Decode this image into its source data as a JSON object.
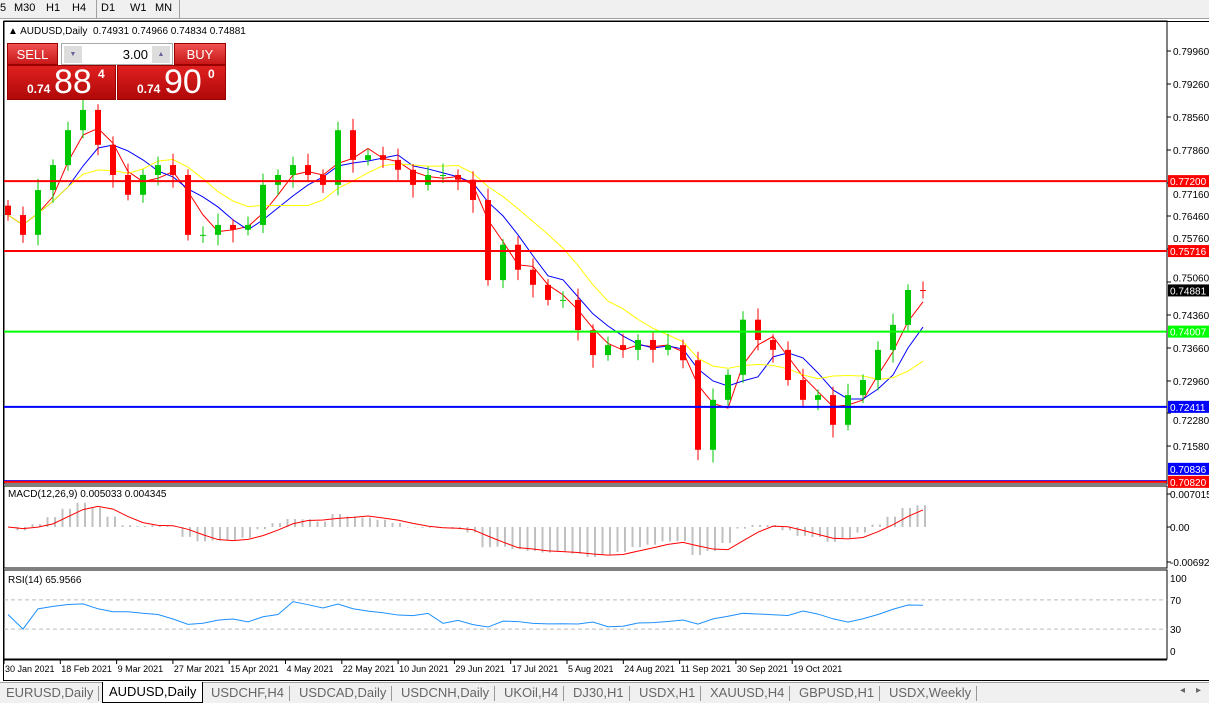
{
  "timeframes": [
    "5",
    "M30",
    "H1",
    "H4",
    "D1",
    "W1",
    "MN"
  ],
  "active_timeframe": "D1",
  "chart": {
    "symbol_header": "AUDUSD,Daily",
    "ohlc": "0.74931 0.74966 0.74834 0.74881"
  },
  "trade_panel": {
    "sell_label": "SELL",
    "buy_label": "BUY",
    "lot": "3.00",
    "sell_prefix": "0.74",
    "sell_big": "88",
    "sell_sup": "4",
    "buy_prefix": "0.74",
    "buy_big": "90",
    "buy_sup": "0"
  },
  "price_axis": [
    "0.79960",
    "0.79260",
    "0.78560",
    "0.77860",
    "0.77160",
    "0.76460",
    "0.75760",
    "0.75060",
    "0.74360",
    "0.73660",
    "0.72960",
    "0.72280",
    "0.71580"
  ],
  "levels": [
    {
      "price": 0.772,
      "label": "0.77200",
      "color": "#ff0000"
    },
    {
      "price": 0.75716,
      "label": "0.75716",
      "color": "#ff0000"
    },
    {
      "price": 0.74007,
      "label": "0.74007",
      "color": "#00ff00"
    },
    {
      "price": 0.72411,
      "label": "0.72411",
      "color": "#0000ff"
    },
    {
      "price": 0.70836,
      "label": "0.70836",
      "color": "#0000ff"
    },
    {
      "price": 0.7082,
      "label": "0.70820",
      "color": "#ff0000"
    }
  ],
  "current_price": {
    "price": 0.74881,
    "label": "0.74881"
  },
  "chart_data": {
    "type": "candlestick",
    "closes": [
      0.7648,
      0.7606,
      0.7701,
      0.7754,
      0.7828,
      0.7871,
      0.7797,
      0.7733,
      0.7691,
      0.7733,
      0.7754,
      0.7733,
      0.7606,
      0.7606,
      0.7627,
      0.7617,
      0.7627,
      0.7712,
      0.7733,
      0.7754,
      0.7733,
      0.7712,
      0.7828,
      0.7765,
      0.7775,
      0.7765,
      0.7744,
      0.7712,
      0.7733,
      0.7733,
      0.7723,
      0.768,
      0.751,
      0.7585,
      0.7532,
      0.75,
      0.7468,
      0.7468,
      0.7404,
      0.7351,
      0.7372,
      0.7362,
      0.7383,
      0.7362,
      0.7372,
      0.734,
      0.715,
      0.7256,
      0.7309,
      0.7426,
      0.7383,
      0.7362,
      0.7298,
      0.7256,
      0.7266,
      0.7203,
      0.7266,
      0.7298,
      0.7362,
      0.7415,
      0.7489,
      0.7488
    ],
    "moving_average_colors": [
      "#ff0000",
      "#0000ff",
      "#ffff00"
    ],
    "candle_up_color": "#00c800",
    "candle_down_color": "#ff0000"
  },
  "macd": {
    "label": "MACD(12,26,9) 0.005033 0.004345",
    "axis": [
      "0.007015",
      "0.00",
      "-0.006923"
    ]
  },
  "rsi": {
    "label": "RSI(14) 65.9566",
    "axis": [
      "100",
      "70",
      "30",
      "0"
    ]
  },
  "time_axis": [
    "30 Jan 2021",
    "18 Feb 2021",
    "9 Mar 2021",
    "27 Mar 2021",
    "15 Apr 2021",
    "4 May 2021",
    "22 May 2021",
    "10 Jun 2021",
    "29 Jun 2021",
    "17 Jul 2021",
    "5 Aug 2021",
    "24 Aug 2021",
    "11 Sep 2021",
    "30 Sep 2021",
    "19 Oct 2021"
  ],
  "tabs": [
    "EURUSD,Daily",
    "AUDUSD,Daily",
    "USDCHF,H4",
    "USDCAD,Daily",
    "USDCNH,Daily",
    "UKOil,H4",
    "DJ30,H1",
    "USDX,H1",
    "XAUUSD,H4",
    "GBPUSD,H1",
    "USDX,Weekly"
  ],
  "active_tab": "AUDUSD,Daily"
}
